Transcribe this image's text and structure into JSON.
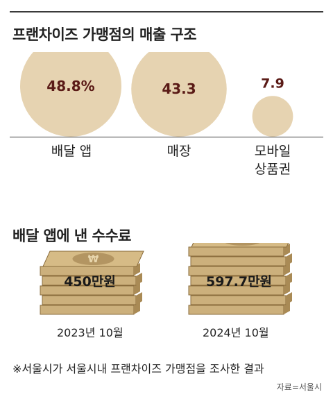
{
  "chart_data": [
    {
      "type": "bubble",
      "title": "프랜차이즈 가맹점의 매출 구조",
      "unit": "%",
      "categories": [
        "배달 앱",
        "매장",
        "모바일 상품권"
      ],
      "values": [
        48.8,
        43.3,
        7.9
      ],
      "value_labels": [
        "48.8%",
        "43.3",
        "7.9"
      ],
      "colors": {
        "bubble": "#e6d3b1",
        "value_text": "#5a1a16"
      }
    },
    {
      "type": "bar",
      "title": "배달 앱에 낸 수수료",
      "categories": [
        "2023년 10월",
        "2024년 10월"
      ],
      "values": [
        450,
        597.7
      ],
      "unit": "만원",
      "value_labels": [
        "450만원",
        "597.7만원"
      ],
      "colors": {
        "bill": "#ccb07c",
        "bill_dark": "#8a6c3c",
        "emblem": "#b39562"
      },
      "emblem_symbol": "₩"
    }
  ],
  "note": "※서울시가 서울시내 프랜차이즈 가맹점을 조사한 결과",
  "source": "자료=서울시"
}
